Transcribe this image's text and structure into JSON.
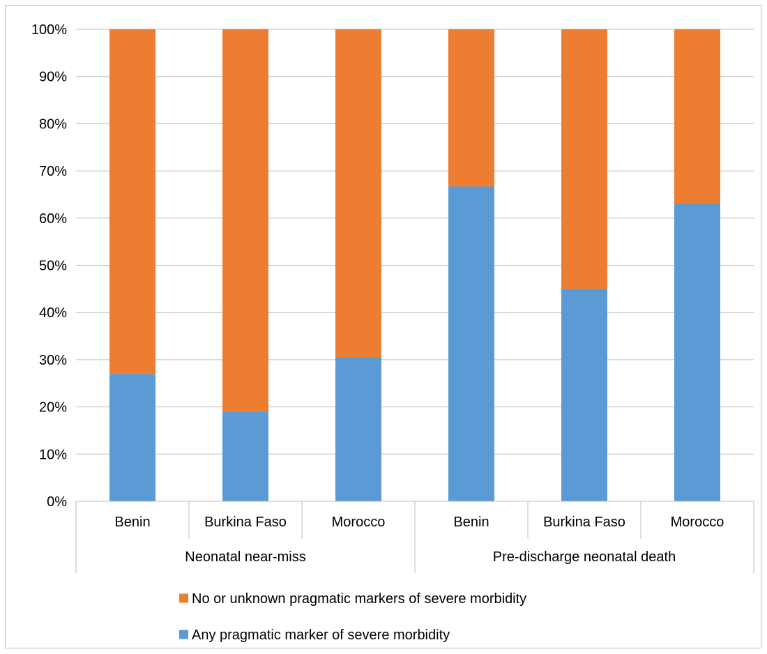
{
  "chart_data": {
    "type": "bar",
    "stacked": true,
    "percent_stacked": true,
    "title": "",
    "xlabel": "",
    "ylabel": "",
    "ylim": [
      0,
      100
    ],
    "y_ticks": [
      "0%",
      "10%",
      "20%",
      "30%",
      "40%",
      "50%",
      "60%",
      "70%",
      "80%",
      "90%",
      "100%"
    ],
    "grid": true,
    "legend_position": "bottom",
    "groups": [
      {
        "label": "Neonatal near-miss",
        "categories": [
          "Benin",
          "Burkina Faso",
          "Morocco"
        ]
      },
      {
        "label": "Pre-discharge neonatal death",
        "categories": [
          "Benin",
          "Burkina Faso",
          "Morocco"
        ]
      }
    ],
    "categories": [
      "Benin",
      "Burkina Faso",
      "Morocco",
      "Benin",
      "Burkina Faso",
      "Morocco"
    ],
    "series": [
      {
        "name": "Any pragmatic marker of severe morbidity",
        "color": "#5b9bd5",
        "values": [
          27,
          19,
          30.5,
          66.7,
          45,
          63
        ]
      },
      {
        "name": "No or unknown pragmatic markers of severe morbidity",
        "color": "#ed7d31",
        "values": [
          73,
          81,
          69.5,
          33.3,
          55,
          37
        ]
      }
    ],
    "legend_order": [
      1,
      0
    ]
  }
}
